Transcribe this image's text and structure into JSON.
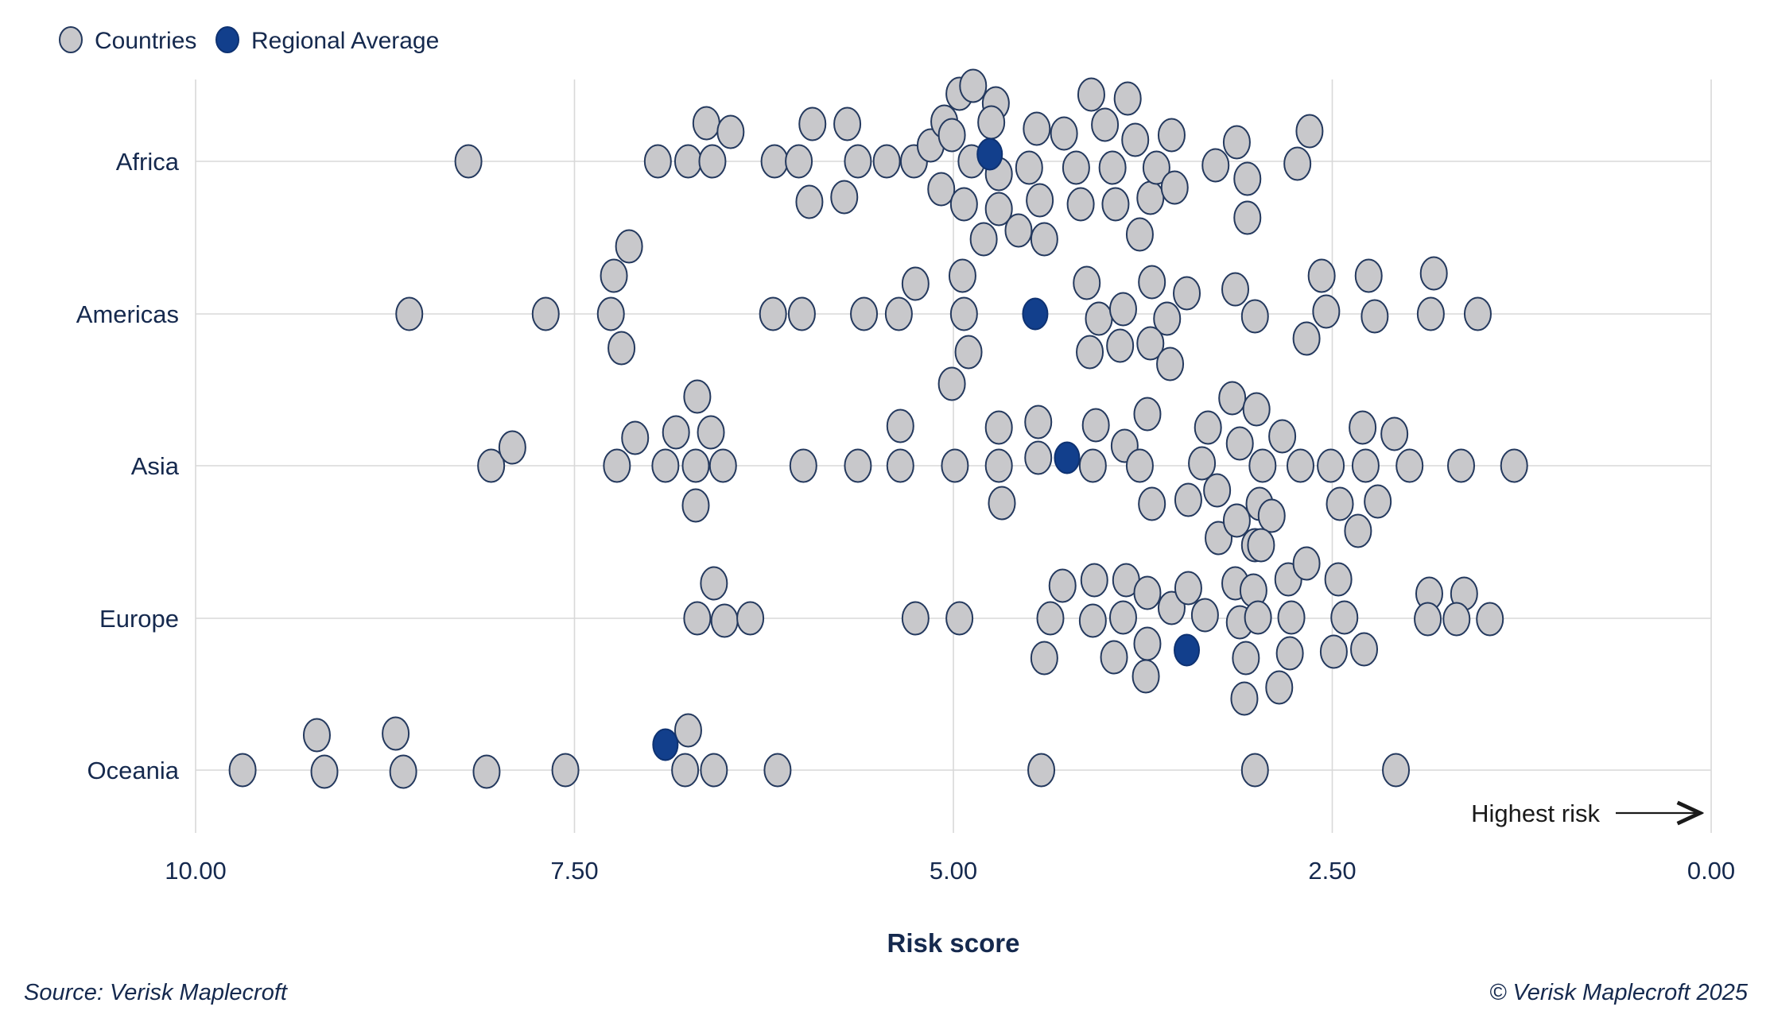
{
  "legend": {
    "countries_label": "Countries",
    "regional_average_label": "Regional Average"
  },
  "axis": {
    "label": "Risk score",
    "ticks": [
      "10.00",
      "7.50",
      "5.00",
      "2.50",
      "0.00"
    ],
    "tick_values": [
      10,
      7.5,
      5,
      2.5,
      0
    ],
    "direction_annotation": "Highest risk"
  },
  "footer": {
    "source": "Source: Verisk Maplecroft",
    "copyright": "© Verisk Maplecroft 2025"
  },
  "colors": {
    "country_fill": "#c8c8cb",
    "dot_stroke": "#24395e",
    "regional_average_fill": "#123f8c",
    "regional_average_stroke": "#0e3272",
    "grid": "#d8d8d8",
    "text": "#15294e",
    "annotation": "#1a1a1a"
  },
  "chart_data": {
    "type": "scatter",
    "title": "",
    "xlabel": "Risk score",
    "x_range": [
      10.0,
      0.0
    ],
    "x_axis_reversed": true,
    "grid": true,
    "legend_position": "top-left",
    "categories": [
      "Africa",
      "Americas",
      "Asia",
      "Europe",
      "Oceania"
    ],
    "series_names": [
      "Countries",
      "Regional Average"
    ],
    "note": "Each point is [risk_score_value, vertical_jitter_px]; lower score = higher risk (arrow points toward 0.00)",
    "regions": [
      {
        "name": "Africa",
        "average": 4.76,
        "average_jitter": -9,
        "points": [
          [
            8.2,
            0
          ],
          [
            6.95,
            0
          ],
          [
            6.75,
            0
          ],
          [
            6.63,
            -48
          ],
          [
            6.59,
            0
          ],
          [
            6.47,
            -37
          ],
          [
            6.18,
            0
          ],
          [
            6.02,
            0
          ],
          [
            5.93,
            -47
          ],
          [
            5.95,
            51
          ],
          [
            5.7,
            -47
          ],
          [
            5.72,
            45
          ],
          [
            5.63,
            0
          ],
          [
            5.44,
            0
          ],
          [
            5.26,
            0
          ],
          [
            5.15,
            -20
          ],
          [
            5.06,
            -50
          ],
          [
            5.08,
            35
          ],
          [
            5.01,
            -33
          ],
          [
            4.96,
            -85
          ],
          [
            4.88,
            0
          ],
          [
            4.87,
            -95
          ],
          [
            4.72,
            -73
          ],
          [
            4.75,
            -49
          ],
          [
            4.7,
            16
          ],
          [
            4.93,
            54
          ],
          [
            4.8,
            98
          ],
          [
            4.7,
            60
          ],
          [
            4.57,
            87
          ],
          [
            4.45,
            -41
          ],
          [
            4.5,
            8
          ],
          [
            4.43,
            49
          ],
          [
            4.4,
            98
          ],
          [
            4.27,
            -35
          ],
          [
            4.19,
            8
          ],
          [
            4.16,
            54
          ],
          [
            4.09,
            -84
          ],
          [
            4.0,
            -46
          ],
          [
            3.95,
            8
          ],
          [
            3.93,
            54
          ],
          [
            3.85,
            -79
          ],
          [
            3.8,
            -27
          ],
          [
            3.77,
            92
          ],
          [
            3.7,
            46
          ],
          [
            3.66,
            8
          ],
          [
            3.56,
            -33
          ],
          [
            3.54,
            33
          ],
          [
            3.27,
            5
          ],
          [
            3.13,
            -24
          ],
          [
            3.06,
            22
          ],
          [
            3.06,
            71
          ],
          [
            2.73,
            3
          ],
          [
            2.65,
            -38
          ]
        ]
      },
      {
        "name": "Americas",
        "average": 4.46,
        "average_jitter": 0,
        "points": [
          [
            8.59,
            0
          ],
          [
            7.69,
            0
          ],
          [
            7.26,
            0
          ],
          [
            7.24,
            -48
          ],
          [
            7.14,
            -85
          ],
          [
            7.19,
            43
          ],
          [
            6.19,
            0
          ],
          [
            6.0,
            0
          ],
          [
            5.59,
            0
          ],
          [
            5.36,
            0
          ],
          [
            5.25,
            -38
          ],
          [
            5.01,
            88
          ],
          [
            4.94,
            -48
          ],
          [
            4.93,
            0
          ],
          [
            4.9,
            48
          ],
          [
            4.12,
            -39
          ],
          [
            4.04,
            6
          ],
          [
            4.1,
            48
          ],
          [
            3.88,
            -6
          ],
          [
            3.9,
            40
          ],
          [
            3.69,
            -40
          ],
          [
            3.59,
            6
          ],
          [
            3.7,
            37
          ],
          [
            3.46,
            -26
          ],
          [
            3.57,
            63
          ],
          [
            3.14,
            -31
          ],
          [
            3.01,
            3
          ],
          [
            2.67,
            31
          ],
          [
            2.57,
            -48
          ],
          [
            2.54,
            -3
          ],
          [
            2.26,
            -48
          ],
          [
            2.22,
            3
          ],
          [
            1.83,
            -51
          ],
          [
            1.85,
            0
          ],
          [
            1.54,
            0
          ]
        ]
      },
      {
        "name": "Asia",
        "average": 4.25,
        "average_jitter": -10,
        "points": [
          [
            8.05,
            0
          ],
          [
            7.91,
            -23
          ],
          [
            7.22,
            0
          ],
          [
            7.1,
            -35
          ],
          [
            6.9,
            0
          ],
          [
            6.83,
            -42
          ],
          [
            6.69,
            -87
          ],
          [
            6.6,
            -42
          ],
          [
            6.7,
            0
          ],
          [
            6.7,
            50
          ],
          [
            6.52,
            0
          ],
          [
            5.99,
            0
          ],
          [
            5.63,
            0
          ],
          [
            5.35,
            0
          ],
          [
            5.35,
            -50
          ],
          [
            4.99,
            0
          ],
          [
            4.7,
            0
          ],
          [
            4.7,
            -48
          ],
          [
            4.68,
            47
          ],
          [
            4.44,
            -10
          ],
          [
            4.44,
            -55
          ],
          [
            4.08,
            0
          ],
          [
            4.06,
            -51
          ],
          [
            3.87,
            -25
          ],
          [
            3.77,
            0
          ],
          [
            3.72,
            -65
          ],
          [
            3.69,
            48
          ],
          [
            3.45,
            43
          ],
          [
            3.32,
            -48
          ],
          [
            3.36,
            -3
          ],
          [
            3.26,
            31
          ],
          [
            3.25,
            91
          ],
          [
            3.16,
            -85
          ],
          [
            3.11,
            -28
          ],
          [
            3.0,
            -71
          ],
          [
            2.96,
            0
          ],
          [
            2.98,
            48
          ],
          [
            3.01,
            100
          ],
          [
            2.83,
            -37
          ],
          [
            2.71,
            0
          ],
          [
            2.51,
            0
          ],
          [
            2.45,
            48
          ],
          [
            2.3,
            -48
          ],
          [
            2.28,
            0
          ],
          [
            2.33,
            82
          ],
          [
            2.2,
            45
          ],
          [
            2.09,
            -40
          ],
          [
            1.99,
            0
          ],
          [
            1.65,
            0
          ],
          [
            1.3,
            0
          ]
        ]
      },
      {
        "name": "Europe",
        "average": 3.46,
        "average_jitter": 40,
        "points": [
          [
            6.69,
            0
          ],
          [
            6.58,
            -44
          ],
          [
            6.51,
            3
          ],
          [
            6.34,
            0
          ],
          [
            5.25,
            0
          ],
          [
            4.96,
            0
          ],
          [
            4.36,
            0
          ],
          [
            4.4,
            50
          ],
          [
            4.28,
            -41
          ],
          [
            4.07,
            -48
          ],
          [
            4.08,
            3
          ],
          [
            3.94,
            49
          ],
          [
            3.86,
            -48
          ],
          [
            3.88,
            -1
          ],
          [
            3.72,
            -32
          ],
          [
            3.72,
            32
          ],
          [
            3.73,
            73
          ],
          [
            3.56,
            -13
          ],
          [
            3.45,
            -38
          ],
          [
            3.34,
            -4
          ],
          [
            3.13,
            -123
          ],
          [
            2.9,
            -129
          ],
          [
            2.97,
            -92
          ],
          [
            3.14,
            -44
          ],
          [
            3.02,
            -35
          ],
          [
            3.11,
            5
          ],
          [
            2.99,
            -1
          ],
          [
            3.07,
            50
          ],
          [
            3.08,
            101
          ],
          [
            2.79,
            -49
          ],
          [
            2.67,
            -69
          ],
          [
            2.77,
            -1
          ],
          [
            2.78,
            44
          ],
          [
            2.85,
            87
          ],
          [
            2.46,
            -49
          ],
          [
            2.42,
            -1
          ],
          [
            2.49,
            42
          ],
          [
            2.29,
            39
          ],
          [
            1.86,
            -31
          ],
          [
            1.87,
            1
          ],
          [
            1.63,
            -31
          ],
          [
            1.68,
            1
          ],
          [
            1.46,
            1
          ]
        ]
      },
      {
        "name": "Oceania",
        "average": 6.9,
        "average_jitter": -32,
        "points": [
          [
            9.69,
            0
          ],
          [
            9.2,
            -44
          ],
          [
            9.15,
            2
          ],
          [
            8.68,
            -46
          ],
          [
            8.63,
            2
          ],
          [
            8.08,
            2
          ],
          [
            7.56,
            0
          ],
          [
            6.75,
            -50
          ],
          [
            6.77,
            0
          ],
          [
            6.58,
            0
          ],
          [
            6.16,
            0
          ],
          [
            4.42,
            0
          ],
          [
            3.01,
            0
          ],
          [
            2.08,
            0
          ]
        ]
      }
    ]
  }
}
